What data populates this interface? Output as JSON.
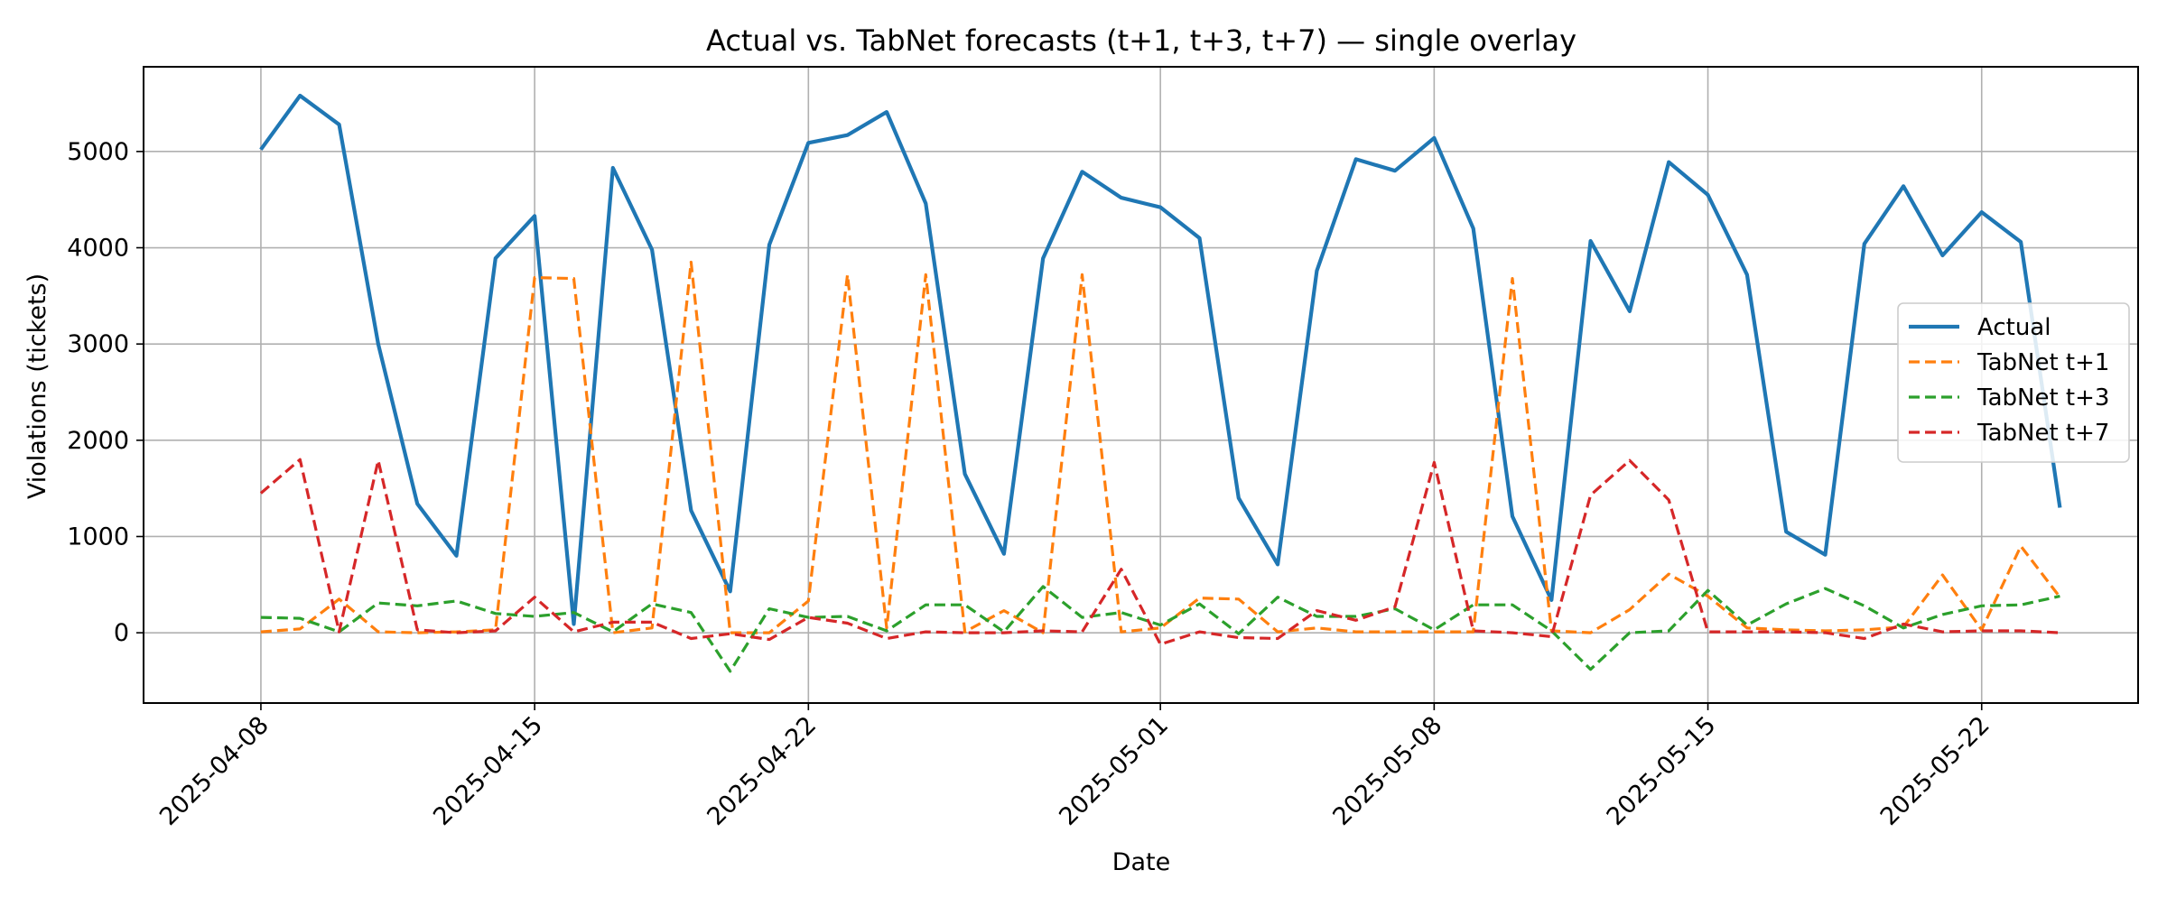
{
  "chart_data": {
    "type": "line",
    "title": "Actual vs. TabNet forecasts (t+1, t+3, t+7) — single overlay",
    "xlabel": "Date",
    "ylabel": "Violations (tickets)",
    "x_start": "2025-04-08",
    "x_end": "2025-05-24",
    "xlim": [
      "2025-04-05",
      "2025-05-26"
    ],
    "ylim": [
      -730,
      5880
    ],
    "x_ticks": [
      "2025-04-08",
      "2025-04-15",
      "2025-04-22",
      "2025-05-01",
      "2025-05-08",
      "2025-05-15",
      "2025-05-22"
    ],
    "y_ticks": [
      0,
      1000,
      2000,
      3000,
      4000,
      5000
    ],
    "grid": true,
    "legend_position": "right",
    "series": [
      {
        "name": "Actual",
        "color": "#1f77b4",
        "style": "solid",
        "values": [
          5020,
          5580,
          5280,
          3000,
          1340,
          800,
          3890,
          4330,
          90,
          4830,
          3980,
          1270,
          430,
          4030,
          5090,
          5170,
          5410,
          4460,
          1650,
          820,
          3890,
          4790,
          4520,
          4420,
          4100,
          1400,
          710,
          3760,
          4920,
          4800,
          5140,
          4200,
          1210,
          340,
          4070,
          3340,
          4890,
          4550,
          3720,
          1050,
          810,
          4040,
          4640,
          3920,
          4370,
          4060,
          1300
        ]
      },
      {
        "name": "TabNet t+1",
        "color": "#ff7f0e",
        "style": "dashed",
        "values": [
          10,
          40,
          350,
          10,
          0,
          10,
          30,
          3690,
          3680,
          0,
          50,
          3850,
          0,
          0,
          330,
          3720,
          50,
          3720,
          10,
          230,
          0,
          3720,
          10,
          50,
          360,
          350,
          10,
          50,
          10,
          10,
          10,
          10,
          3680,
          20,
          0,
          240,
          610,
          380,
          50,
          30,
          20,
          30,
          60,
          600,
          30,
          900,
          370
        ]
      },
      {
        "name": "TabNet t+3",
        "color": "#2ca02c",
        "style": "dashed",
        "values": [
          160,
          150,
          10,
          310,
          280,
          330,
          200,
          170,
          210,
          10,
          300,
          210,
          -400,
          250,
          160,
          170,
          20,
          290,
          290,
          10,
          480,
          160,
          210,
          80,
          300,
          -10,
          370,
          170,
          170,
          250,
          30,
          290,
          290,
          20,
          -380,
          0,
          20,
          440,
          80,
          300,
          460,
          280,
          50,
          190,
          280,
          290,
          380
        ]
      },
      {
        "name": "TabNet t+7",
        "color": "#d62728",
        "style": "dashed",
        "values": [
          1450,
          1800,
          10,
          1790,
          30,
          0,
          20,
          370,
          10,
          110,
          110,
          -60,
          -10,
          -70,
          160,
          100,
          -60,
          10,
          0,
          0,
          20,
          10,
          660,
          -120,
          10,
          -50,
          -60,
          230,
          130,
          270,
          1770,
          20,
          0,
          -40,
          1430,
          1790,
          1380,
          10,
          10,
          10,
          0,
          -60,
          90,
          10,
          20,
          20,
          0
        ]
      }
    ]
  }
}
